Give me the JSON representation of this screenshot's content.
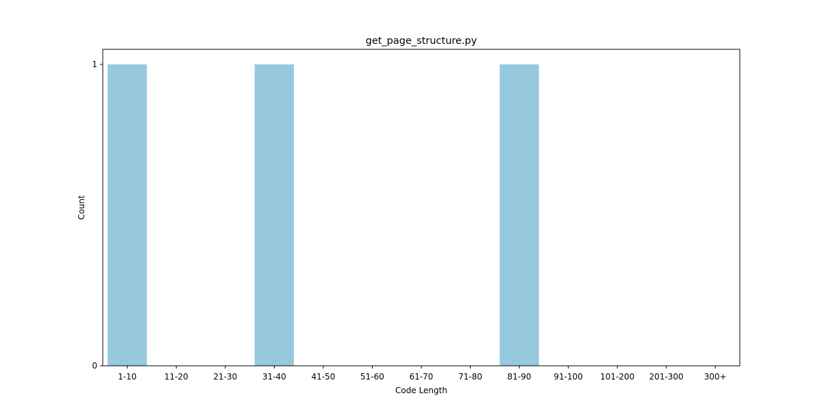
{
  "chart_data": {
    "type": "bar",
    "title": "get_page_structure.py",
    "xlabel": "Code Length",
    "ylabel": "Count",
    "categories": [
      "1-10",
      "11-20",
      "21-30",
      "31-40",
      "41-50",
      "51-60",
      "61-70",
      "71-80",
      "81-90",
      "91-100",
      "101-200",
      "201-300",
      "300+"
    ],
    "values": [
      1,
      0,
      0,
      1,
      0,
      0,
      0,
      0,
      1,
      0,
      0,
      0,
      0
    ],
    "ylim": [
      0,
      1.05
    ],
    "yticks": [
      0,
      1
    ],
    "grid": false,
    "bar_color": "#96c9de"
  }
}
